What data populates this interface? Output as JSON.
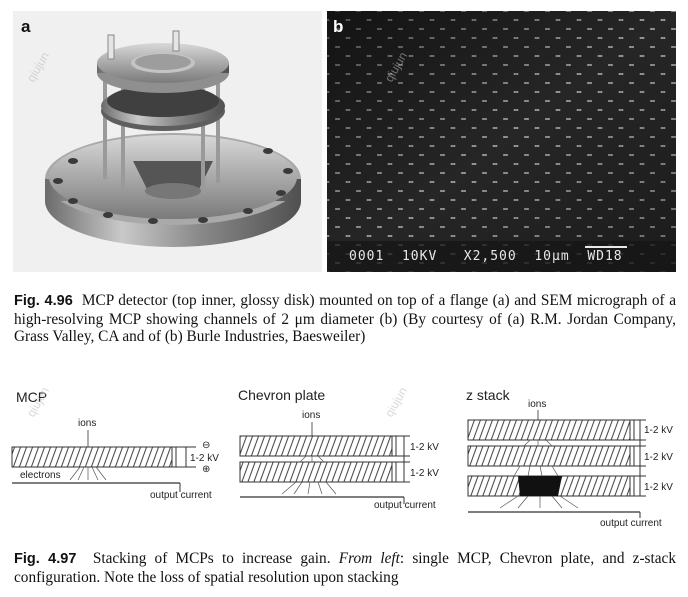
{
  "fig96": {
    "panel_a_label": "a",
    "panel_b_label": "b",
    "sem_scale_text": "0001  10KV   X2,500  10μm  WD18",
    "caption_fig": "Fig. 4.96",
    "caption_text": "MCP detector (top inner, glossy disk) mounted on top of a flange (a) and SEM micrograph of a high-resolving MCP showing channels of 2 μm diameter (b) (By courtesy of (a) R.M. Jordan Company, Grass Valley, CA and of (b) Burle Industries, Baesweiler)"
  },
  "fig97": {
    "mcp": {
      "title": "MCP",
      "ions": "ions",
      "voltage": "1-2 kV",
      "minus": "⊖",
      "plus": "⊕",
      "electrons": "electrons",
      "output": "output current"
    },
    "chevron": {
      "title": "Chevron plate",
      "ions": "ions",
      "voltage1": "1-2 kV",
      "voltage2": "1-2 kV",
      "output": "output current"
    },
    "zstack": {
      "title": "z stack",
      "ions": "ions",
      "voltage1": "1-2 kV",
      "voltage2": "1-2 kV",
      "voltage3": "1-2 kV",
      "output": "output current"
    },
    "caption_fig": "Fig. 4.97",
    "caption_text_1": "Stacking of MCPs to increase gain.",
    "caption_italic": "From left",
    "caption_text_2": ": single MCP, Chevron plate, and z-stack configuration. Note the loss of spatial resolution upon stacking"
  },
  "watermark": "qiujun"
}
